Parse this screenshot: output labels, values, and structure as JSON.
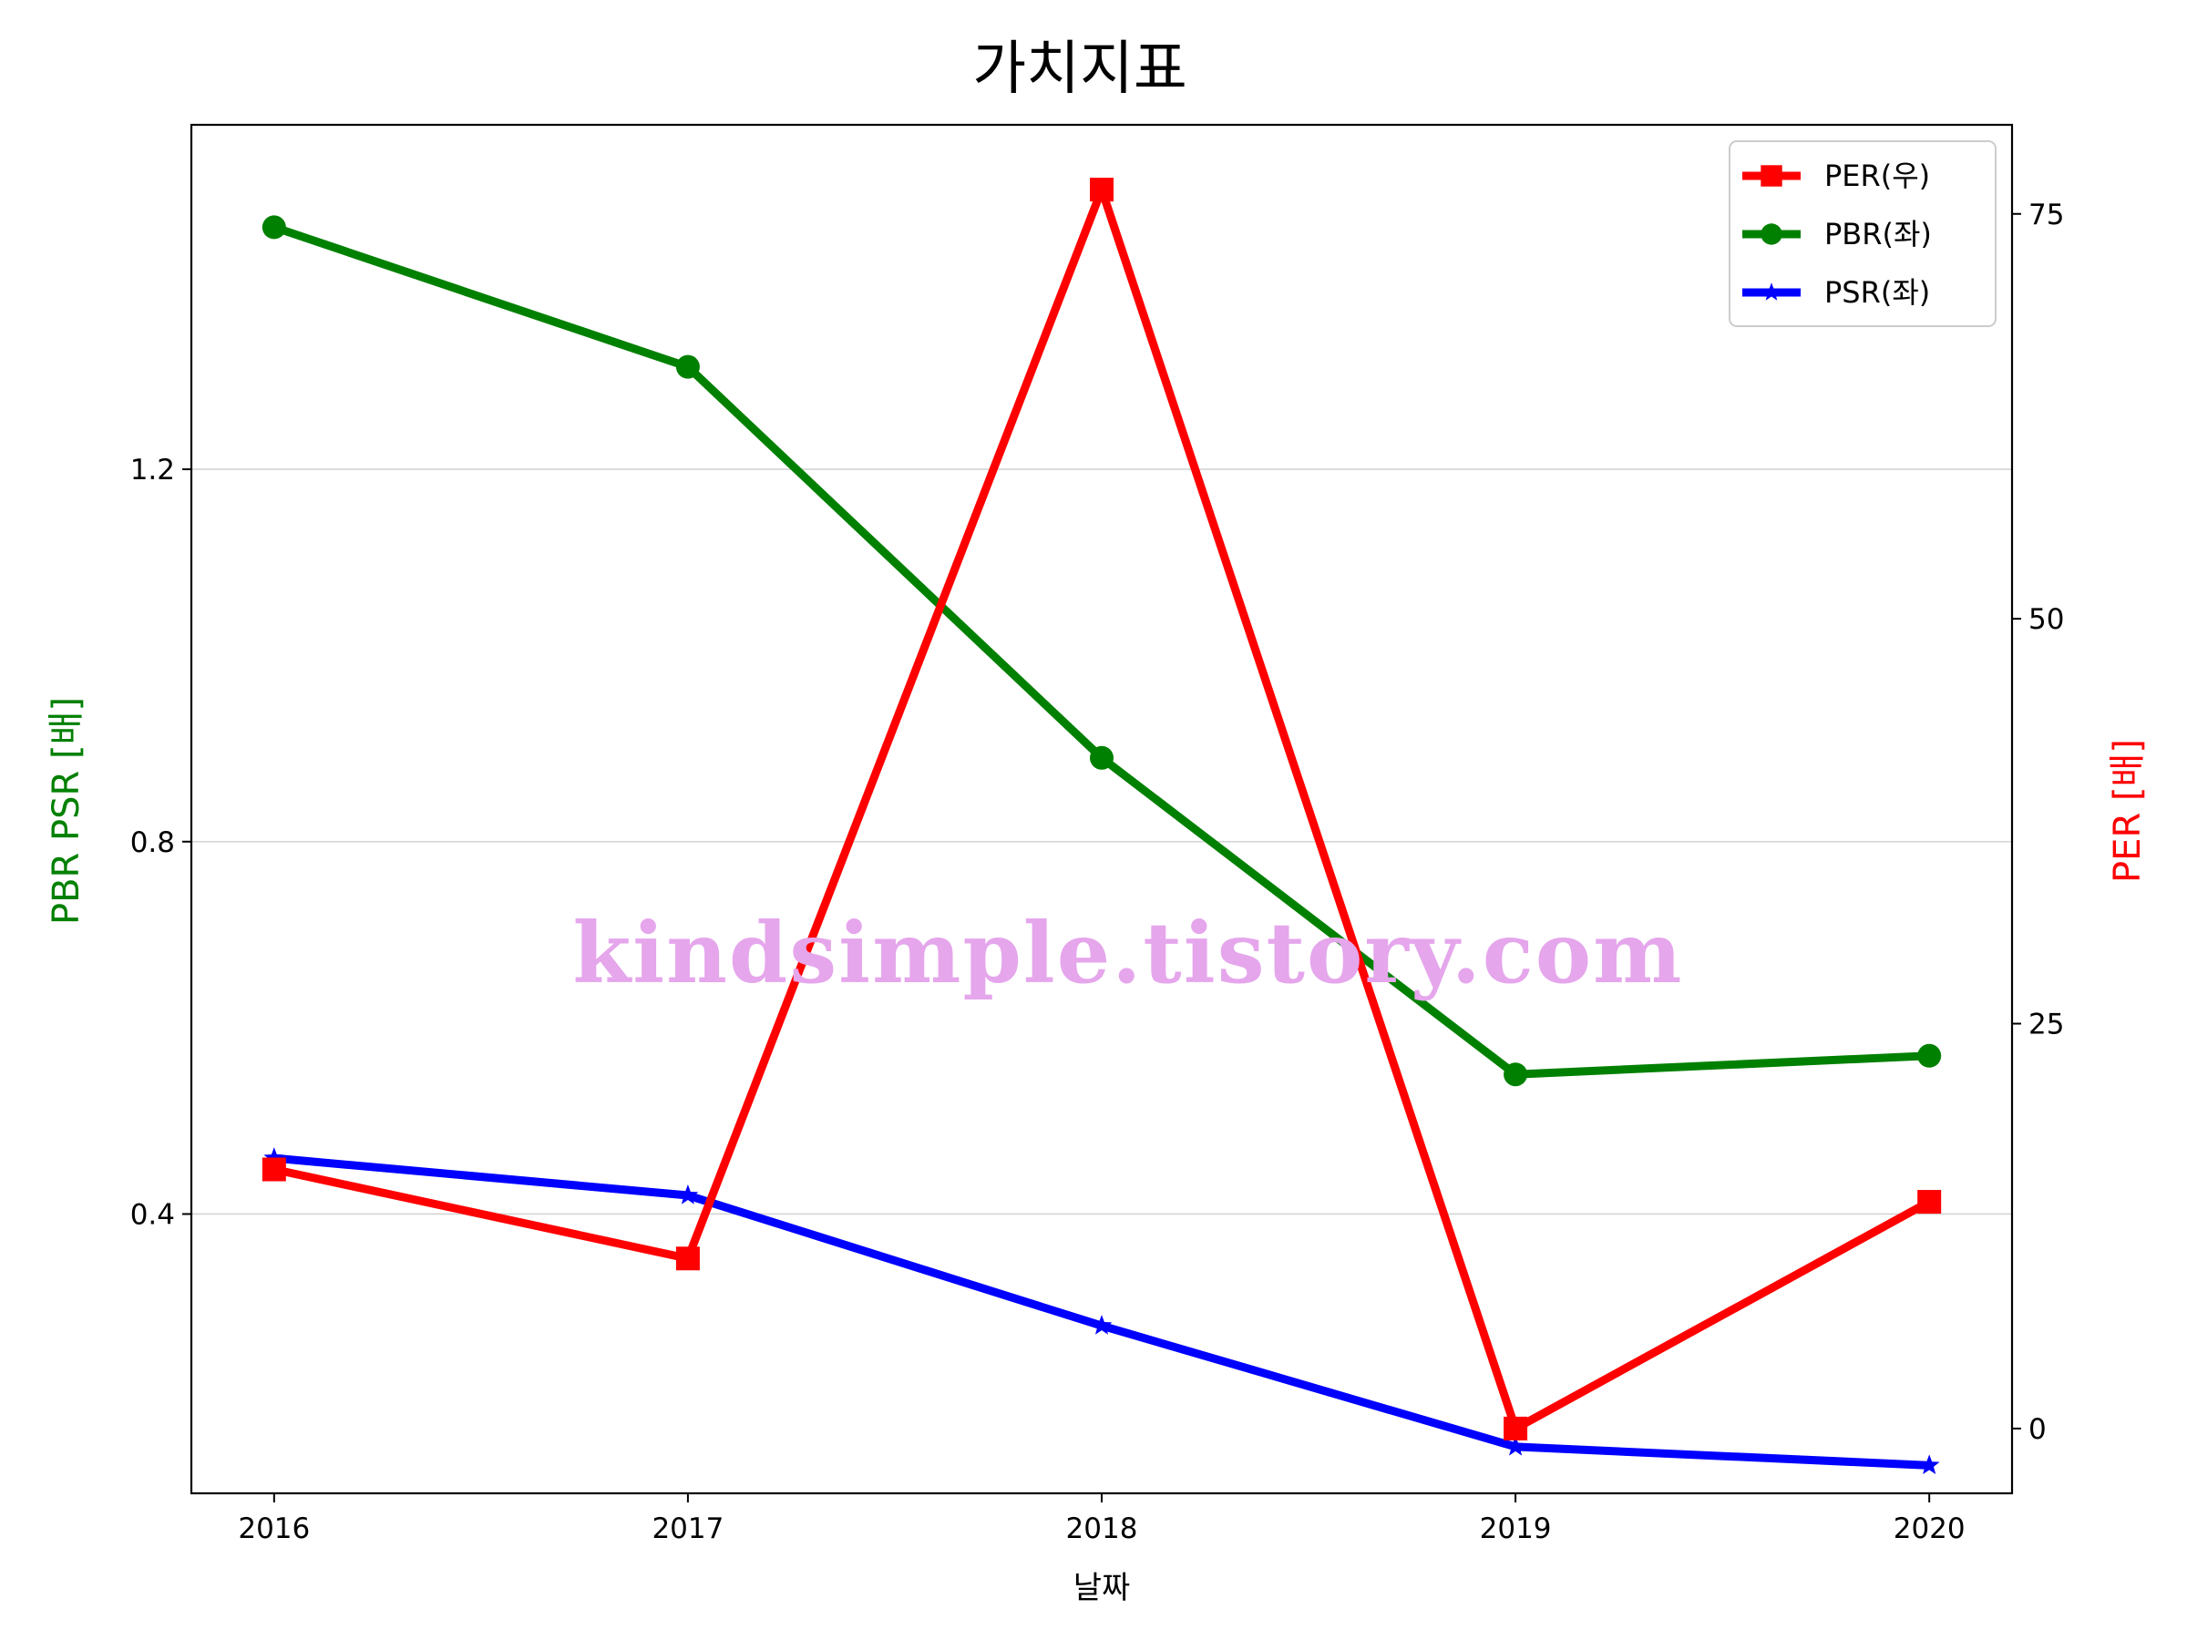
{
  "chart_data": {
    "type": "line",
    "title": "가치지표",
    "xlabel": "날짜",
    "ylabel_left": "PBR PSR [배]",
    "ylabel_right": "PER [배]",
    "categories": [
      "2016",
      "2017",
      "2018",
      "2019",
      "2020"
    ],
    "left_axis": {
      "ylim": [
        0.1,
        1.57
      ],
      "ticks": [
        0.4,
        0.8,
        1.2
      ],
      "tick_labels": [
        "0.4",
        "0.8",
        "1.2"
      ]
    },
    "right_axis": {
      "ylim": [
        -4,
        80.5
      ],
      "ticks": [
        0,
        25,
        50,
        75
      ],
      "tick_labels": [
        "0",
        "25",
        "50",
        "75"
      ]
    },
    "grid": "horizontal (left axis)",
    "legend_position": "top-right",
    "series": [
      {
        "name": "PER(우)",
        "axis": "right",
        "color": "#ff0000",
        "marker": "square",
        "values": [
          16.0,
          10.5,
          76.5,
          0.0,
          14.0
        ]
      },
      {
        "name": "PBR(좌)",
        "axis": "left",
        "color": "#008000",
        "marker": "circle",
        "values": [
          1.46,
          1.31,
          0.89,
          0.55,
          0.57
        ]
      },
      {
        "name": "PSR(좌)",
        "axis": "left",
        "color": "#0000ff",
        "marker": "star",
        "values": [
          0.46,
          0.42,
          0.28,
          0.15,
          0.13
        ]
      }
    ],
    "watermark": "kindsimple.tistory.com",
    "colors": {
      "left_label": "#008000",
      "right_label": "#ff0000"
    }
  }
}
